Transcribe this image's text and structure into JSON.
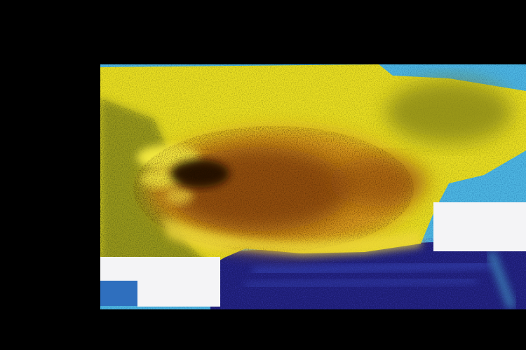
{
  "image": {
    "description_free": true,
    "palette": {
      "background": "#000000",
      "yellow": "#e6dc1e",
      "bright_yellow": "#f5ea3a",
      "orange": "#d9961a",
      "brown": "#7a3f0c",
      "dark": "#2a0e05",
      "olive": "#8a8a1e",
      "sky_blue": "#5fb8e6",
      "cyan": "#4fc6e0",
      "navy": "#1a1a6e",
      "indigo": "#2c2c9c",
      "patch": "#f4f4f6",
      "patch_blue": "#2f6fbe"
    }
  }
}
